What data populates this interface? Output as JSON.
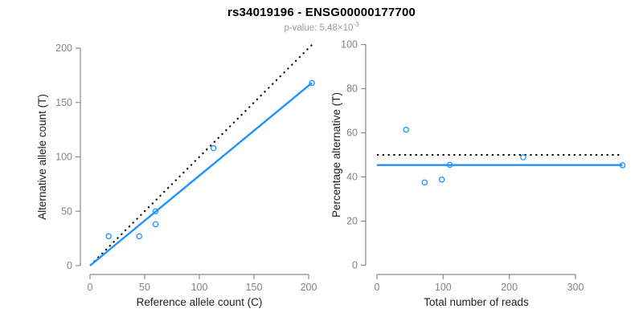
{
  "header": {
    "title": "rs34019196 - ENSG00000177700",
    "subtitle_base": "p-value: 5.48×10",
    "subtitle_exponent": "-3"
  },
  "colors": {
    "accent_blue": "#1e90ff",
    "dotted_black": "#000000",
    "axis_gray": "#8a8a8a",
    "tick_label_gray": "#848484",
    "axis_title_dark": "#1f1f1f",
    "subtitle_gray": "#9a9a9a"
  },
  "chart_data": [
    {
      "type": "scatter",
      "panel": "left",
      "title": "rs34019196 - ENSG00000177700",
      "xlabel": "Reference allele count (C)",
      "ylabel": "Alternative allele count (T)",
      "xlim": [
        0,
        200
      ],
      "ylim": [
        0,
        200
      ],
      "xticks": [
        0,
        50,
        100,
        150,
        200
      ],
      "yticks": [
        0,
        50,
        100,
        150,
        200
      ],
      "grid": false,
      "points": [
        [
          17,
          27
        ],
        [
          45,
          27
        ],
        [
          60,
          38
        ],
        [
          60,
          50
        ],
        [
          113,
          108
        ],
        [
          203,
          168
        ]
      ],
      "lines": [
        {
          "name": "identity-line",
          "style": "dotted",
          "color": "#000000",
          "from": [
            0,
            0
          ],
          "to": [
            204,
            204
          ]
        },
        {
          "name": "fitted-line",
          "style": "solid",
          "color": "#1e90ff",
          "from": [
            0,
            0
          ],
          "to": [
            203,
            168
          ]
        }
      ]
    },
    {
      "type": "scatter",
      "panel": "right",
      "xlabel": "Total number of reads",
      "ylabel": "Percentage alternative (T)",
      "xlim": [
        0,
        300
      ],
      "ylim": [
        0,
        100
      ],
      "xticks": [
        0,
        100,
        200,
        300
      ],
      "yticks": [
        0,
        20,
        40,
        60,
        80,
        100
      ],
      "grid": false,
      "points": [
        [
          44,
          61.4
        ],
        [
          72,
          37.5
        ],
        [
          98,
          38.8
        ],
        [
          110,
          45.5
        ],
        [
          221,
          48.9
        ],
        [
          371,
          45.3
        ]
      ],
      "lines": [
        {
          "name": "fifty-percent-line",
          "style": "dotted",
          "color": "#000000",
          "from": [
            0,
            50
          ],
          "to": [
            371,
            50
          ]
        },
        {
          "name": "fitted-line",
          "style": "solid",
          "color": "#1e90ff",
          "from": [
            0,
            45.4
          ],
          "to": [
            371,
            45.4
          ]
        }
      ]
    }
  ]
}
